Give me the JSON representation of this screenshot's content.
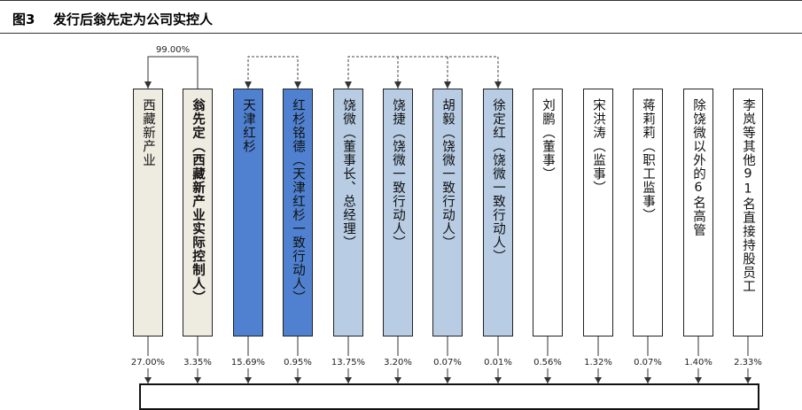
{
  "figure": {
    "label": "图3",
    "title": "发行后翁先定为公司实控人"
  },
  "relation_label": "99.00%",
  "shareholders": [
    {
      "name": "西藏新产业",
      "pct": "27.00%",
      "color": "#eeece1",
      "bold": false
    },
    {
      "name": "翁先定（西藏新产业实际控制人）",
      "pct": "3.35%",
      "color": "#eeece1",
      "bold": true
    },
    {
      "name": "天津红杉",
      "pct": "15.69%",
      "color": "#4f81d0",
      "bold": false
    },
    {
      "name": "红杉铭德（天津红杉一致行动人）",
      "pct": "0.95%",
      "color": "#4f81d0",
      "bold": false
    },
    {
      "name": "饶微（董事长、总经理）",
      "pct": "13.75%",
      "color": "#b8cce4",
      "bold": false
    },
    {
      "name": "饶捷（饶微一致行动人）",
      "pct": "3.20%",
      "color": "#b8cce4",
      "bold": false
    },
    {
      "name": "胡毅（饶微一致行动人）",
      "pct": "0.07%",
      "color": "#b8cce4",
      "bold": false
    },
    {
      "name": "徐定红（饶微一致行动人）",
      "pct": "0.01%",
      "color": "#b8cce4",
      "bold": false
    },
    {
      "name": "刘鹏（董事）",
      "pct": "0.56%",
      "color": "#ffffff",
      "bold": false
    },
    {
      "name": "宋洪涛（监事）",
      "pct": "1.32%",
      "color": "#ffffff",
      "bold": false
    },
    {
      "name": "蒋莉莉（职工监事）",
      "pct": "0.07%",
      "color": "#ffffff",
      "bold": false
    },
    {
      "name": "除饶微以外的6名高管",
      "pct": "1.40%",
      "color": "#ffffff",
      "bold": false
    },
    {
      "name": "李岚等其他91名直接持股员工",
      "pct": "2.33%",
      "color": "#ffffff",
      "bold": false
    }
  ]
}
